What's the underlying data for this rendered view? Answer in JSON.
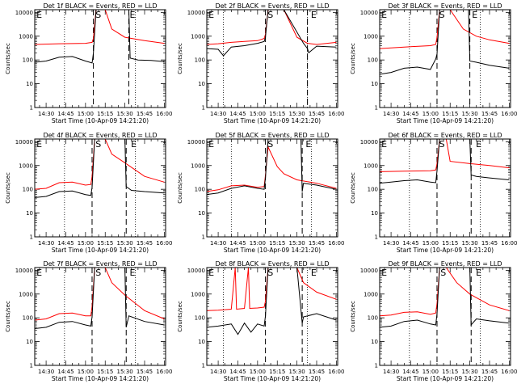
{
  "chart_data": [
    {
      "type": "line",
      "title": "Det 1f BLACK = Events, RED = LLD",
      "xlabel": "Start Time (10-Apr-09 14:21:20)",
      "ylabel": "Counts/sec",
      "yscale": "log",
      "ylim": [
        1,
        13000
      ],
      "xlim": [
        "14:21:20",
        "16:01:00"
      ],
      "xticks": [
        "14:30",
        "14:45",
        "15:00",
        "15:15",
        "15:30",
        "15:45",
        "16:00"
      ],
      "yticks": [
        "1",
        "10",
        "100",
        "1000",
        "10000"
      ],
      "dotted_lines": [
        "14:44",
        "15:38"
      ],
      "dashed_lines": [
        "15:06",
        "15:33"
      ],
      "markers": [
        {
          "label": "E",
          "at": "14:22"
        },
        {
          "label": "S",
          "at": "15:07"
        },
        {
          "label": "E",
          "at": "15:33"
        }
      ],
      "series": [
        {
          "name": "",
          "color": "#000000",
          "x": [
            "14:21",
            "14:30",
            "14:40",
            "14:50",
            "15:00",
            "15:05",
            "15:06",
            "15:08",
            "15:15",
            "15:30",
            "15:33",
            "15:34",
            "15:40",
            "15:50",
            "16:00"
          ],
          "y": [
            80,
            90,
            130,
            140,
            90,
            75,
            190,
            13000,
            13000,
            13000,
            13000,
            120,
            100,
            95,
            85
          ]
        },
        {
          "name": "",
          "color": "#ff0000",
          "x": [
            "14:21",
            "14:40",
            "15:00",
            "15:05",
            "15:06",
            "15:08",
            "15:15",
            "15:20",
            "15:30",
            "15:45",
            "16:00"
          ],
          "y": [
            450,
            480,
            500,
            550,
            800,
            13000,
            13000,
            2000,
            900,
            650,
            500
          ]
        }
      ]
    },
    {
      "type": "line",
      "title": "Det 2f BLACK = Events, RED = LLD",
      "xlabel": "Start Time (10-Apr-09 14:21:20)",
      "ylabel": "Counts/sec",
      "yscale": "log",
      "ylim": [
        1,
        13000
      ],
      "xlim": [
        "14:21:20",
        "16:01:00"
      ],
      "xticks": [
        "14:30",
        "14:45",
        "15:00",
        "15:15",
        "15:30",
        "15:45",
        "16:00"
      ],
      "yticks": [
        "1",
        "10",
        "100",
        "1000",
        "10000"
      ],
      "dotted_lines": [
        "14:34",
        "15:38"
      ],
      "dashed_lines": [
        "15:06",
        "15:38"
      ],
      "markers": [
        {
          "label": "E",
          "at": "14:22"
        },
        {
          "label": "S",
          "at": "15:07"
        },
        {
          "label": "E",
          "at": "15:40"
        }
      ],
      "series": [
        {
          "name": "",
          "color": "#000000",
          "x": [
            "14:21",
            "14:30",
            "14:34",
            "14:40",
            "14:50",
            "15:00",
            "15:05",
            "15:06",
            "15:08",
            "15:20",
            "15:35",
            "15:38",
            "15:39",
            "15:45",
            "16:00"
          ],
          "y": [
            300,
            280,
            150,
            350,
            400,
            500,
            600,
            900,
            13000,
            13000,
            500,
            300,
            200,
            380,
            350
          ]
        },
        {
          "name": "",
          "color": "#ff0000",
          "x": [
            "14:21",
            "14:30",
            "14:40",
            "14:50",
            "15:00",
            "15:05",
            "15:06",
            "15:08",
            "15:20",
            "15:30",
            "15:38",
            "15:45",
            "16:00"
          ],
          "y": [
            450,
            480,
            550,
            600,
            650,
            800,
            1200,
            13000,
            13000,
            900,
            500,
            450,
            550
          ]
        }
      ]
    },
    {
      "type": "line",
      "title": "Det 3f BLACK = Events, RED = LLD",
      "xlabel": "Start Time (10-Apr-09 14:21:20)",
      "ylabel": "Counts/sec",
      "yscale": "log",
      "ylim": [
        1,
        13000
      ],
      "xlim": [
        "14:21:20",
        "16:01:00"
      ],
      "xticks": [
        "14:30",
        "14:45",
        "15:00",
        "15:15",
        "15:30",
        "15:45",
        "16:00"
      ],
      "yticks": [
        "1",
        "10",
        "100",
        "1000",
        "10000"
      ],
      "dotted_lines": [
        "14:44",
        "15:38"
      ],
      "dashed_lines": [
        "15:05",
        "15:30"
      ],
      "markers": [
        {
          "label": "E",
          "at": "14:22"
        },
        {
          "label": "S",
          "at": "15:06"
        },
        {
          "label": "E",
          "at": "15:31"
        }
      ],
      "series": [
        {
          "name": "",
          "color": "#000000",
          "x": [
            "14:21",
            "14:30",
            "14:40",
            "14:50",
            "15:00",
            "15:04",
            "15:05",
            "15:07",
            "15:29",
            "15:30",
            "15:35",
            "15:45",
            "16:00"
          ],
          "y": [
            25,
            30,
            45,
            50,
            40,
            110,
            180,
            13000,
            13000,
            90,
            80,
            60,
            45
          ]
        },
        {
          "name": "",
          "color": "#ff0000",
          "x": [
            "14:21",
            "14:40",
            "15:00",
            "15:04",
            "15:05",
            "15:07",
            "15:15",
            "15:25",
            "15:35",
            "15:45",
            "16:00"
          ],
          "y": [
            300,
            350,
            400,
            450,
            900,
            13000,
            13000,
            2000,
            1000,
            700,
            500
          ]
        }
      ]
    },
    {
      "type": "line",
      "title": "Det 4f BLACK = Events, RED = LLD",
      "xlabel": "Start Time (10-Apr-09 14:21:20)",
      "ylabel": "Counts/sec",
      "yscale": "log",
      "ylim": [
        1,
        13000
      ],
      "xlim": [
        "14:21:20",
        "16:01:00"
      ],
      "xticks": [
        "14:30",
        "14:45",
        "15:00",
        "15:15",
        "15:30",
        "15:45",
        "16:00"
      ],
      "yticks": [
        "1",
        "10",
        "100",
        "1000",
        "10000"
      ],
      "dotted_lines": [
        "14:44",
        "15:38"
      ],
      "dashed_lines": [
        "15:05",
        "15:31"
      ],
      "markers": [
        {
          "label": "E",
          "at": "14:22"
        },
        {
          "label": "S",
          "at": "15:07"
        },
        {
          "label": "E",
          "at": "15:34"
        }
      ],
      "series": [
        {
          "name": "",
          "color": "#000000",
          "x": [
            "14:21",
            "14:30",
            "14:40",
            "14:50",
            "15:00",
            "15:04",
            "15:05",
            "15:07",
            "15:30",
            "15:31",
            "15:35",
            "15:45",
            "16:00"
          ],
          "y": [
            45,
            50,
            80,
            85,
            60,
            55,
            120,
            13000,
            13000,
            130,
            90,
            80,
            70
          ]
        },
        {
          "name": "",
          "color": "#ff0000",
          "x": [
            "14:21",
            "14:30",
            "14:40",
            "14:50",
            "15:00",
            "15:04",
            "15:05",
            "15:07",
            "15:15",
            "15:20",
            "15:30",
            "15:45",
            "16:00"
          ],
          "y": [
            100,
            110,
            190,
            200,
            150,
            160,
            350,
            13000,
            13000,
            3000,
            1300,
            350,
            200
          ]
        }
      ]
    },
    {
      "type": "line",
      "title": "Det 5f BLACK = Events, RED = LLD",
      "xlabel": "Start Time (10-Apr-09 14:21:20)",
      "ylabel": "Counts/sec",
      "yscale": "log",
      "ylim": [
        1,
        13000
      ],
      "xlim": [
        "14:21:20",
        "16:01:00"
      ],
      "xticks": [
        "14:30",
        "14:45",
        "15:00",
        "15:15",
        "15:30",
        "15:45",
        "16:00"
      ],
      "yticks": [
        "1",
        "10",
        "100",
        "1000",
        "10000"
      ],
      "dotted_lines": [
        "14:40",
        "15:41"
      ],
      "dashed_lines": [
        "15:06",
        "15:34"
      ],
      "markers": [
        {
          "label": "E",
          "at": "14:22"
        },
        {
          "label": "S",
          "at": "15:07"
        },
        {
          "label": "E",
          "at": "15:36"
        }
      ],
      "series": [
        {
          "name": "",
          "color": "#000000",
          "x": [
            "14:21",
            "14:30",
            "14:40",
            "14:50",
            "15:00",
            "15:05",
            "15:06",
            "15:08",
            "15:20",
            "15:33",
            "15:34",
            "15:35",
            "15:45",
            "16:00"
          ],
          "y": [
            60,
            70,
            110,
            140,
            110,
            100,
            300,
            13000,
            13000,
            13000,
            80,
            180,
            150,
            100
          ]
        },
        {
          "name": "",
          "color": "#ff0000",
          "x": [
            "14:21",
            "14:30",
            "14:40",
            "14:50",
            "15:00",
            "15:05",
            "15:06",
            "15:08",
            "15:15",
            "15:20",
            "15:30",
            "15:45",
            "16:00"
          ],
          "y": [
            80,
            95,
            140,
            150,
            120,
            130,
            400,
            6000,
            900,
            450,
            250,
            180,
            110
          ]
        }
      ]
    },
    {
      "type": "line",
      "title": "Det 6f BLACK = Events, RED = LLD",
      "xlabel": "Start Time (10-Apr-09 14:21:20)",
      "ylabel": "Counts/sec",
      "yscale": "log",
      "ylim": [
        1,
        13000
      ],
      "xlim": [
        "14:21:20",
        "16:01:00"
      ],
      "xticks": [
        "14:30",
        "14:45",
        "15:00",
        "15:15",
        "15:30",
        "15:45",
        "16:00"
      ],
      "yticks": [
        "1",
        "10",
        "100",
        "1000",
        "10000"
      ],
      "dotted_lines": [
        "14:44",
        "15:38"
      ],
      "dashed_lines": [
        "15:05",
        "15:31"
      ],
      "markers": [
        {
          "label": "E",
          "at": "14:22"
        },
        {
          "label": "S",
          "at": "15:06"
        },
        {
          "label": "E",
          "at": "15:34"
        }
      ],
      "series": [
        {
          "name": "",
          "color": "#000000",
          "x": [
            "14:21",
            "14:30",
            "14:40",
            "14:50",
            "15:00",
            "15:04",
            "15:05",
            "15:07",
            "15:30",
            "15:31",
            "15:35",
            "15:45",
            "16:00"
          ],
          "y": [
            180,
            200,
            230,
            250,
            200,
            190,
            600,
            13000,
            13000,
            400,
            350,
            300,
            250
          ]
        },
        {
          "name": "",
          "color": "#ff0000",
          "x": [
            "14:21",
            "14:40",
            "15:00",
            "15:04",
            "15:05",
            "15:07",
            "15:12",
            "15:15",
            "15:30",
            "15:45",
            "16:00"
          ],
          "y": [
            550,
            580,
            600,
            650,
            1200,
            13000,
            13000,
            1500,
            1200,
            1000,
            800
          ]
        }
      ]
    },
    {
      "type": "line",
      "title": "Det 7f BLACK = Events, RED = LLD",
      "xlabel": "Start Time (10-Apr-09 14:21:20)",
      "ylabel": "Counts/sec",
      "yscale": "log",
      "ylim": [
        1,
        13000
      ],
      "xlim": [
        "14:21:20",
        "16:01:00"
      ],
      "xticks": [
        "14:30",
        "14:45",
        "15:00",
        "15:15",
        "15:30",
        "15:45",
        "16:00"
      ],
      "yticks": [
        "1",
        "10",
        "100",
        "1000",
        "10000"
      ],
      "dotted_lines": [
        "14:44",
        "15:38"
      ],
      "dashed_lines": [
        "15:05",
        "15:31"
      ],
      "markers": [
        {
          "label": "E",
          "at": "14:22"
        },
        {
          "label": "S",
          "at": "15:07"
        },
        {
          "label": "E",
          "at": "15:33"
        }
      ],
      "series": [
        {
          "name": "",
          "color": "#000000",
          "x": [
            "14:21",
            "14:30",
            "14:40",
            "14:50",
            "15:00",
            "15:04",
            "15:05",
            "15:07",
            "15:30",
            "15:31",
            "15:33",
            "15:45",
            "16:00"
          ],
          "y": [
            35,
            40,
            65,
            70,
            50,
            45,
            110,
            13000,
            13000,
            40,
            120,
            70,
            50
          ]
        },
        {
          "name": "",
          "color": "#ff0000",
          "x": [
            "14:21",
            "14:30",
            "14:40",
            "14:50",
            "15:00",
            "15:04",
            "15:05",
            "15:07",
            "15:15",
            "15:20",
            "15:30",
            "15:45",
            "16:00"
          ],
          "y": [
            80,
            90,
            150,
            160,
            120,
            120,
            300,
            13000,
            13000,
            3000,
            900,
            200,
            90
          ]
        }
      ]
    },
    {
      "type": "line",
      "title": "Det 8f BLACK = Events, RED = LLD",
      "xlabel": "Start Time (10-Apr-09 14:21:20)",
      "ylabel": "Counts/sec",
      "yscale": "log",
      "ylim": [
        1,
        13000
      ],
      "xlim": [
        "14:21:20",
        "16:01:00"
      ],
      "xticks": [
        "14:30",
        "14:45",
        "15:00",
        "15:15",
        "15:30",
        "15:45",
        "16:00"
      ],
      "yticks": [
        "1",
        "10",
        "100",
        "1000",
        "10000"
      ],
      "dotted_lines": [
        "14:34",
        "15:38"
      ],
      "dashed_lines": [
        "15:06",
        "15:34"
      ],
      "markers": [
        {
          "label": "E",
          "at": "14:22"
        },
        {
          "label": "S",
          "at": "15:07"
        },
        {
          "label": "E",
          "at": "15:40"
        }
      ],
      "series": [
        {
          "name": "",
          "color": "#000000",
          "x": [
            "14:21",
            "14:30",
            "14:40",
            "14:45",
            "14:50",
            "14:55",
            "15:00",
            "15:05",
            "15:06",
            "15:08",
            "15:30",
            "15:34",
            "15:35",
            "15:45",
            "16:00"
          ],
          "y": [
            40,
            45,
            55,
            20,
            60,
            25,
            55,
            45,
            120,
            13000,
            13000,
            60,
            110,
            150,
            80
          ]
        },
        {
          "name": "",
          "color": "#ff0000",
          "x": [
            "14:21",
            "14:30",
            "14:40",
            "14:43",
            "14:44",
            "14:50",
            "14:53",
            "14:54",
            "15:00",
            "15:05",
            "15:06",
            "15:08",
            "15:30",
            "15:35",
            "15:45",
            "16:00"
          ],
          "y": [
            200,
            210,
            230,
            13000,
            230,
            250,
            13000,
            250,
            260,
            280,
            500,
            13000,
            13000,
            3000,
            1200,
            600
          ]
        }
      ]
    },
    {
      "type": "line",
      "title": "Det 9f BLACK = Events, RED = LLD",
      "xlabel": "Start Time (10-Apr-09 14:21:20)",
      "ylabel": "Counts/sec",
      "yscale": "log",
      "ylim": [
        1,
        13000
      ],
      "xlim": [
        "14:21:20",
        "16:01:00"
      ],
      "xticks": [
        "14:30",
        "14:45",
        "15:00",
        "15:15",
        "15:30",
        "15:45",
        "16:00"
      ],
      "yticks": [
        "1",
        "10",
        "100",
        "1000",
        "10000"
      ],
      "dotted_lines": [
        "14:44",
        "15:38"
      ],
      "dashed_lines": [
        "15:05",
        "15:31"
      ],
      "markers": [
        {
          "label": "E",
          "at": "14:22"
        },
        {
          "label": "S",
          "at": "15:07"
        },
        {
          "label": "E",
          "at": "15:34"
        }
      ],
      "series": [
        {
          "name": "",
          "color": "#000000",
          "x": [
            "14:21",
            "14:30",
            "14:40",
            "14:50",
            "15:00",
            "15:04",
            "15:05",
            "15:07",
            "15:30",
            "15:31",
            "15:35",
            "15:45",
            "16:00"
          ],
          "y": [
            40,
            45,
            70,
            80,
            55,
            50,
            150,
            13000,
            13000,
            50,
            90,
            75,
            60
          ]
        },
        {
          "name": "",
          "color": "#ff0000",
          "x": [
            "14:21",
            "14:30",
            "14:40",
            "14:50",
            "15:00",
            "15:04",
            "15:05",
            "15:07",
            "15:12",
            "15:20",
            "15:30",
            "15:45",
            "16:00"
          ],
          "y": [
            120,
            130,
            170,
            180,
            140,
            160,
            400,
            13000,
            13000,
            3000,
            1000,
            350,
            200
          ]
        }
      ]
    }
  ]
}
